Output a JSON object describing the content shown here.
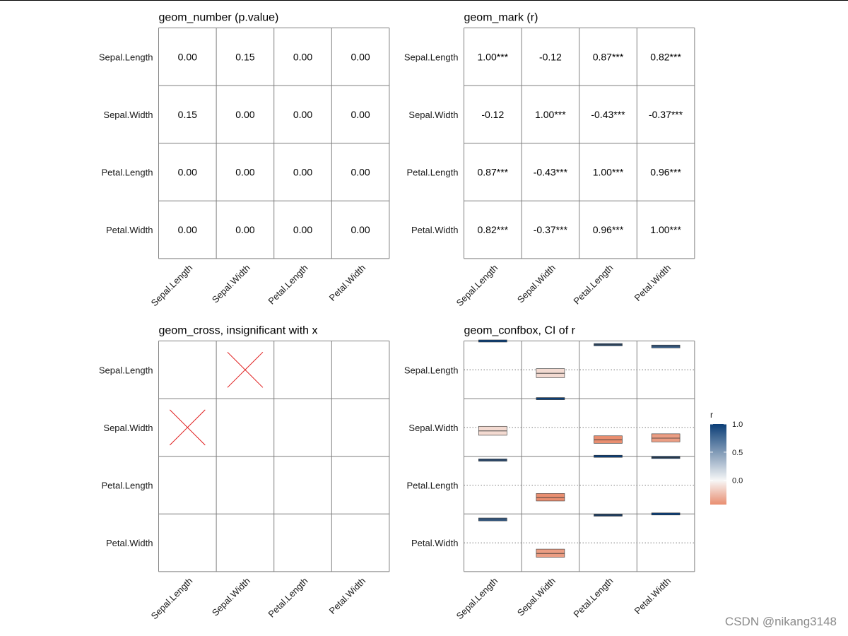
{
  "chart_data": [
    {
      "type": "heatmap",
      "geom": "number",
      "title": "geom_number (p.value)",
      "rows": [
        "Sepal.Length",
        "Sepal.Width",
        "Petal.Length",
        "Petal.Width"
      ],
      "columns": [
        "Sepal.Length",
        "Sepal.Width",
        "Petal.Length",
        "Petal.Width"
      ],
      "cells": [
        [
          "0.00",
          "0.15",
          "0.00",
          "0.00"
        ],
        [
          "0.15",
          "0.00",
          "0.00",
          "0.00"
        ],
        [
          "0.00",
          "0.00",
          "0.00",
          "0.00"
        ],
        [
          "0.00",
          "0.00",
          "0.00",
          "0.00"
        ]
      ]
    },
    {
      "type": "heatmap",
      "geom": "mark",
      "title": "geom_mark (r)",
      "rows": [
        "Sepal.Length",
        "Sepal.Width",
        "Petal.Length",
        "Petal.Width"
      ],
      "columns": [
        "Sepal.Length",
        "Sepal.Width",
        "Petal.Length",
        "Petal.Width"
      ],
      "cells": [
        [
          "1.00***",
          "-0.12",
          "0.87***",
          "0.82***"
        ],
        [
          "-0.12",
          "1.00***",
          "-0.43***",
          "-0.37***"
        ],
        [
          "0.87***",
          "-0.43***",
          "1.00***",
          "0.96***"
        ],
        [
          "0.82***",
          "-0.37***",
          "0.96***",
          "1.00***"
        ]
      ]
    },
    {
      "type": "heatmap",
      "geom": "cross",
      "title": "geom_cross, insignificant with x",
      "rows": [
        "Sepal.Length",
        "Sepal.Width",
        "Petal.Length",
        "Petal.Width"
      ],
      "columns": [
        "Sepal.Length",
        "Sepal.Width",
        "Petal.Length",
        "Petal.Width"
      ],
      "insignificant": [
        {
          "row": 0,
          "col": 1
        },
        {
          "row": 1,
          "col": 0
        }
      ],
      "cross_color": "#e01c1c"
    },
    {
      "type": "heatmap",
      "geom": "confbox",
      "title": "geom_confbox, CI of r",
      "rows": [
        "Sepal.Length",
        "Sepal.Width",
        "Petal.Length",
        "Petal.Width"
      ],
      "columns": [
        "Sepal.Length",
        "Sepal.Width",
        "Petal.Length",
        "Petal.Width"
      ],
      "r": [
        [
          1.0,
          -0.12,
          0.87,
          0.82
        ],
        [
          -0.12,
          1.0,
          -0.43,
          -0.37
        ],
        [
          0.87,
          -0.43,
          1.0,
          0.96
        ],
        [
          0.82,
          -0.37,
          0.96,
          1.0
        ]
      ],
      "ci_lower": [
        [
          1.0,
          -0.27,
          0.83,
          0.76
        ],
        [
          -0.27,
          1.0,
          -0.55,
          -0.5
        ],
        [
          0.83,
          -0.55,
          1.0,
          0.95
        ],
        [
          0.76,
          -0.5,
          0.95,
          1.0
        ]
      ],
      "ci_upper": [
        [
          1.0,
          0.04,
          0.91,
          0.86
        ],
        [
          0.04,
          1.0,
          -0.29,
          -0.22
        ],
        [
          0.91,
          -0.29,
          1.0,
          0.97
        ],
        [
          0.86,
          -0.22,
          0.97,
          1.0
        ]
      ],
      "ylim": [
        -1,
        1
      ]
    }
  ],
  "legend": {
    "title": "r",
    "ticks": [
      1.0,
      0.5,
      0.0
    ],
    "tick_labels": [
      "1.0",
      "0.5",
      "0.0"
    ],
    "range": [
      -0.43,
      1.0
    ],
    "colors": {
      "neg": "#e8896a",
      "mid": "#f7f7f7",
      "pos": "#0b3e77"
    }
  },
  "watermark": "CSDN @nikang3148"
}
